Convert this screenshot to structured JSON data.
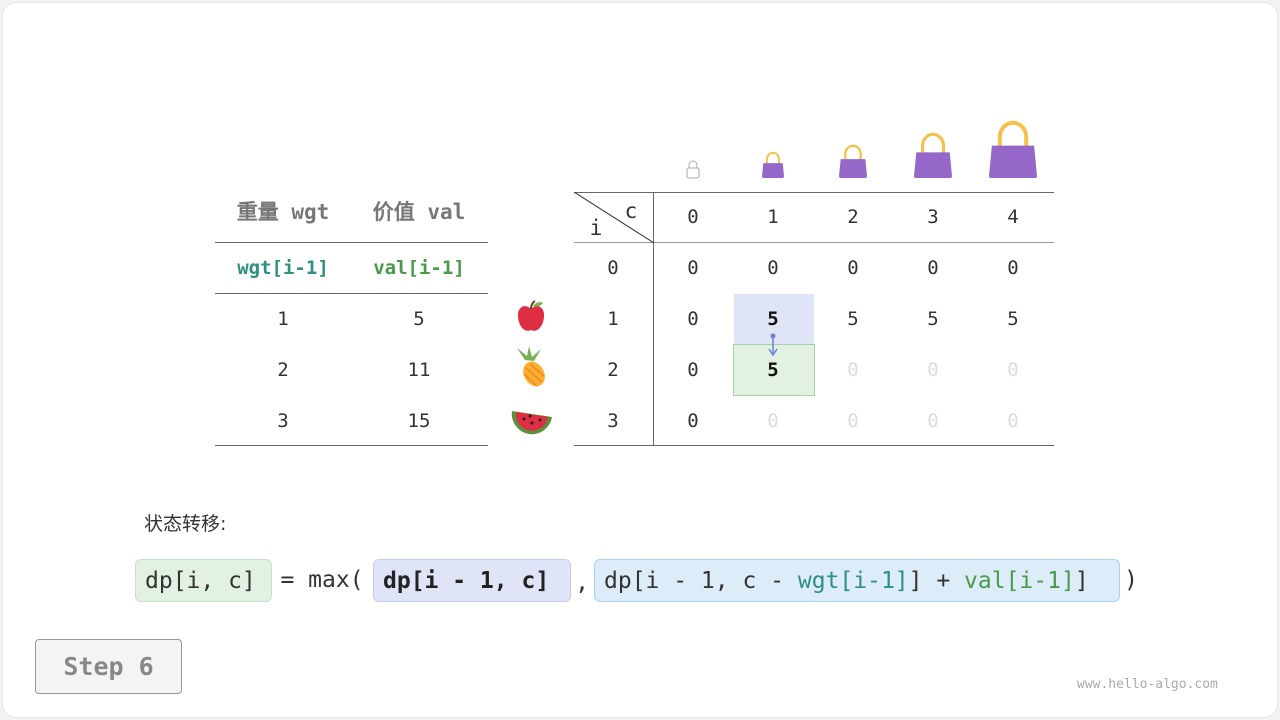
{
  "items_table": {
    "headers": [
      "重量 wgt",
      "价值 val"
    ],
    "subheaders": [
      "wgt[i-1]",
      "val[i-1]"
    ],
    "rows": [
      {
        "wgt": "1",
        "val": "5",
        "icon": "apple-icon"
      },
      {
        "wgt": "2",
        "val": "11",
        "icon": "pineapple-icon"
      },
      {
        "wgt": "3",
        "val": "15",
        "icon": "watermelon-icon"
      }
    ]
  },
  "dp_table": {
    "corner_i": "i",
    "corner_c": "c",
    "col_headers": [
      "0",
      "1",
      "2",
      "3",
      "4"
    ],
    "row_headers": [
      "0",
      "1",
      "2",
      "3"
    ],
    "rows": [
      [
        "0",
        "0",
        "0",
        "0",
        "0"
      ],
      [
        "0",
        "5",
        "5",
        "5",
        "5"
      ],
      [
        "0",
        "5",
        "0",
        "0",
        "0"
      ],
      [
        "0",
        "0",
        "0",
        "0",
        "0"
      ]
    ],
    "bag_icons": [
      "bag-outline-icon",
      "bag-icon",
      "bag-icon",
      "bag-icon",
      "bag-icon"
    ]
  },
  "label": "状态转移:",
  "formula": {
    "lhs": "dp[i, c]",
    "eq": "= max(",
    "arg1": "dp[i - 1, c]",
    "comma": ",",
    "arg2_a": "dp[i - 1, c - ",
    "arg2_wgt": "wgt[i-1]",
    "arg2_b": "] + ",
    "arg2_val": "val[i-1]",
    "close": ")"
  },
  "step_label": "Step 6",
  "watermark": "www.hello-algo.com",
  "colors": {
    "highlight_blue": "#e0e4f7",
    "highlight_green": "#e3f1e3",
    "bag": "#9467c9",
    "handle": "#f5c14d"
  }
}
